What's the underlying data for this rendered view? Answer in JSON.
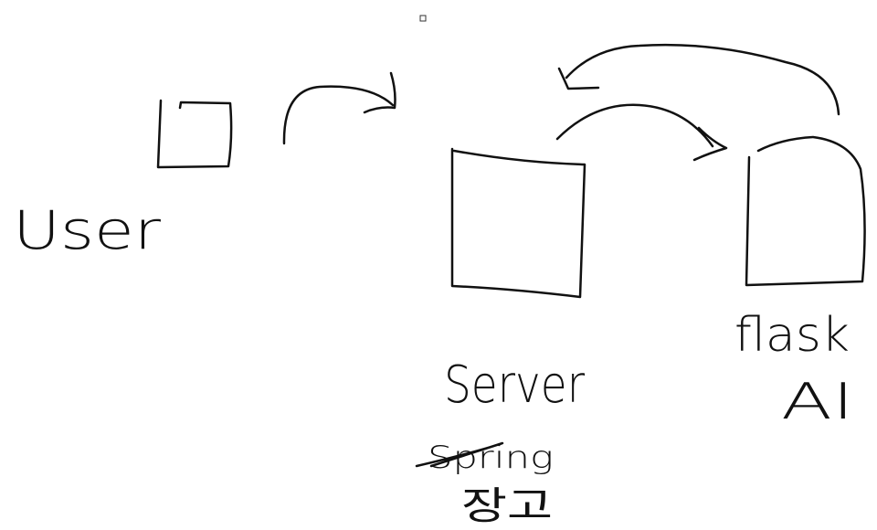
{
  "nodes": [
    {
      "label": "User"
    },
    {
      "label": "Server",
      "notes": [
        "Spring",
        "장고"
      ]
    },
    {
      "label": "flask",
      "sublabel": "AI"
    }
  ]
}
